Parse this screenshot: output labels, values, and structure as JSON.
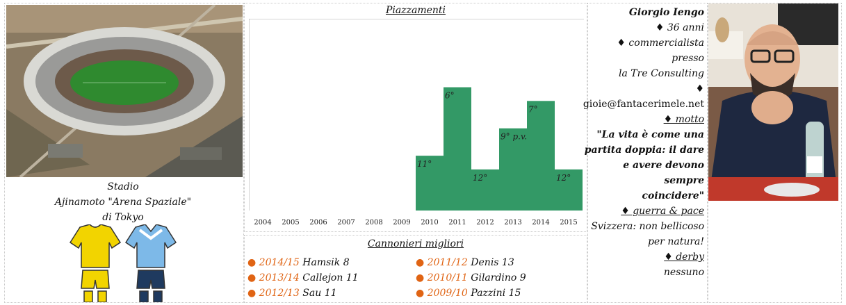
{
  "stadium": {
    "caption_line1": "Stadio",
    "caption_line2": "Ajinamoto \"Arena Spaziale\"",
    "caption_line3": "di Tokyo"
  },
  "kits": {
    "home_color": "#f2d400",
    "away_color": "#7db9e8",
    "away_shorts_color": "#1f3a5f"
  },
  "placements": {
    "title": "Piazzamenti",
    "chart_data": {
      "type": "bar",
      "categories": [
        "2004",
        "2005",
        "2006",
        "2007",
        "2008",
        "2009",
        "2010",
        "2011",
        "2012",
        "2013",
        "2014",
        "2015"
      ],
      "values": [
        null,
        null,
        null,
        null,
        null,
        null,
        11,
        6,
        12,
        9,
        7,
        12
      ],
      "labels": [
        "",
        "",
        "",
        "",
        "",
        "",
        "11°",
        "6°",
        "12°",
        "9° p.v.",
        "7°",
        "12°"
      ],
      "bar_color": "#339966",
      "ylim": [
        0,
        14
      ],
      "inverted": true
    }
  },
  "scorers": {
    "title": "Cannonieri migliori",
    "left": [
      {
        "season": "2014/15",
        "name": "Hamsik 8"
      },
      {
        "season": "2013/14",
        "name": "Callejon 11"
      },
      {
        "season": "2012/13",
        "name": "Sau 11"
      }
    ],
    "right": [
      {
        "season": "2011/12",
        "name": "Denis 13"
      },
      {
        "season": "2010/11",
        "name": "Gilardino 9"
      },
      {
        "season": "2009/10",
        "name": "Pazzini 15"
      }
    ]
  },
  "profile": {
    "name": "Giorgio Iengo",
    "age": "♦ 36 anni",
    "job_line1": "♦ commercialista presso",
    "job_line2": "la Tre Consulting",
    "email_bullet": "♦",
    "email": "gioie@fantacerimele.net",
    "motto_label": "♦ motto",
    "motto_line1": "\"La vita è come una",
    "motto_line2": "partita doppia: il dare",
    "motto_line3": "e avere devono sempre",
    "motto_line4": "coincidere\"",
    "war_label": "♦ guerra & pace",
    "war_line1": "Svizzera: non bellicoso",
    "war_line2": "per natura!",
    "derby_label": "♦ derby",
    "derby_value": "nessuno"
  }
}
